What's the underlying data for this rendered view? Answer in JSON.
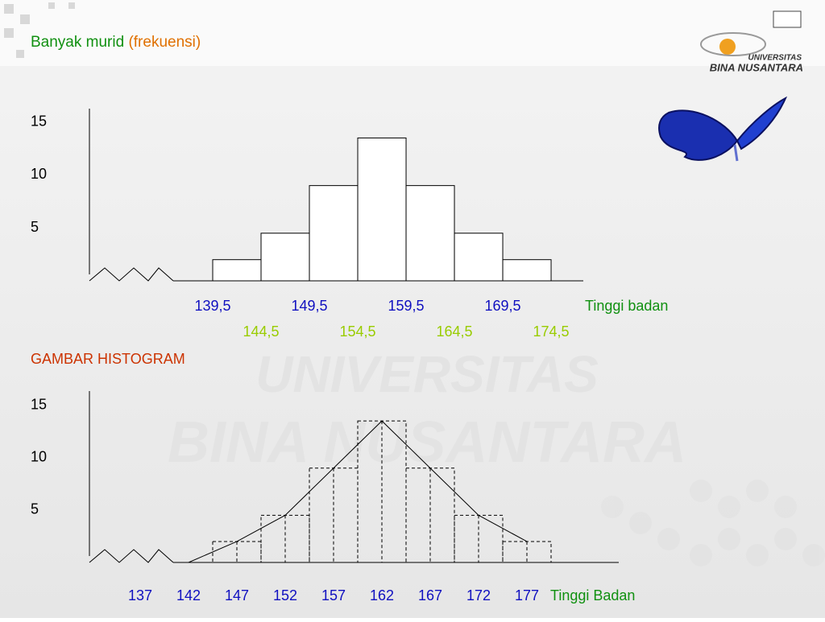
{
  "header": {
    "title": "Banyak murid",
    "title_note": "(frekuensi)",
    "logo_top": "UNIVERSITAS",
    "logo_bottom": "BINA NUSANTARA"
  },
  "chart_data": [
    {
      "type": "histogram",
      "bins": [
        139.5,
        144.5,
        149.5,
        154.5,
        159.5,
        164.5,
        169.5,
        174.5
      ],
      "values": [
        2,
        4.5,
        9,
        13.5,
        9,
        4.5,
        2
      ],
      "fill": "#ffffff",
      "color": "#000000",
      "dashed": false,
      "xlim": [
        126.75,
        177.83
      ],
      "ylim": [
        0,
        16.5
      ],
      "yticks": [
        5,
        10,
        15
      ],
      "xticks": [
        {
          "value": 139.5,
          "label": "139,5"
        },
        {
          "value": 144.5,
          "label": "144,5"
        },
        {
          "value": 149.5,
          "label": "149,5"
        },
        {
          "value": 154.5,
          "label": "154,5"
        },
        {
          "value": 159.5,
          "label": "159,5"
        },
        {
          "value": 164.5,
          "label": "164,5"
        },
        {
          "value": 169.5,
          "label": "169,5"
        },
        {
          "value": 174.5,
          "label": "174,5"
        }
      ],
      "tick_colors": [
        "#1010c0",
        "#99cc00"
      ],
      "xlabel": "Tinggi badan"
    },
    {
      "type": "histogram",
      "title": "GAMBAR HISTOGRAM",
      "bins": [
        144.5,
        149.5,
        154.5,
        159.5,
        164.5,
        169.5,
        174.5,
        179.5
      ],
      "values": [
        2,
        4.5,
        9,
        13.5,
        9,
        4.5,
        2
      ],
      "fill": "#ffffff",
      "color": "#000000",
      "dashed": true,
      "polygon": {
        "x": [
          142,
          147,
          152,
          157,
          162,
          167,
          172,
          177
        ],
        "values": [
          0,
          2,
          4.5,
          9,
          13.5,
          9,
          4.5,
          2
        ]
      },
      "xlim": [
        131.75,
        186.5
      ],
      "ylim": [
        0,
        16.5
      ],
      "yticks": [
        5,
        10,
        15
      ],
      "xticks": [
        137,
        142,
        147,
        152,
        157,
        162,
        167,
        172,
        177
      ],
      "tick_colors": [
        "#1010c0"
      ],
      "xlabel": "Tinggi Badan"
    }
  ]
}
